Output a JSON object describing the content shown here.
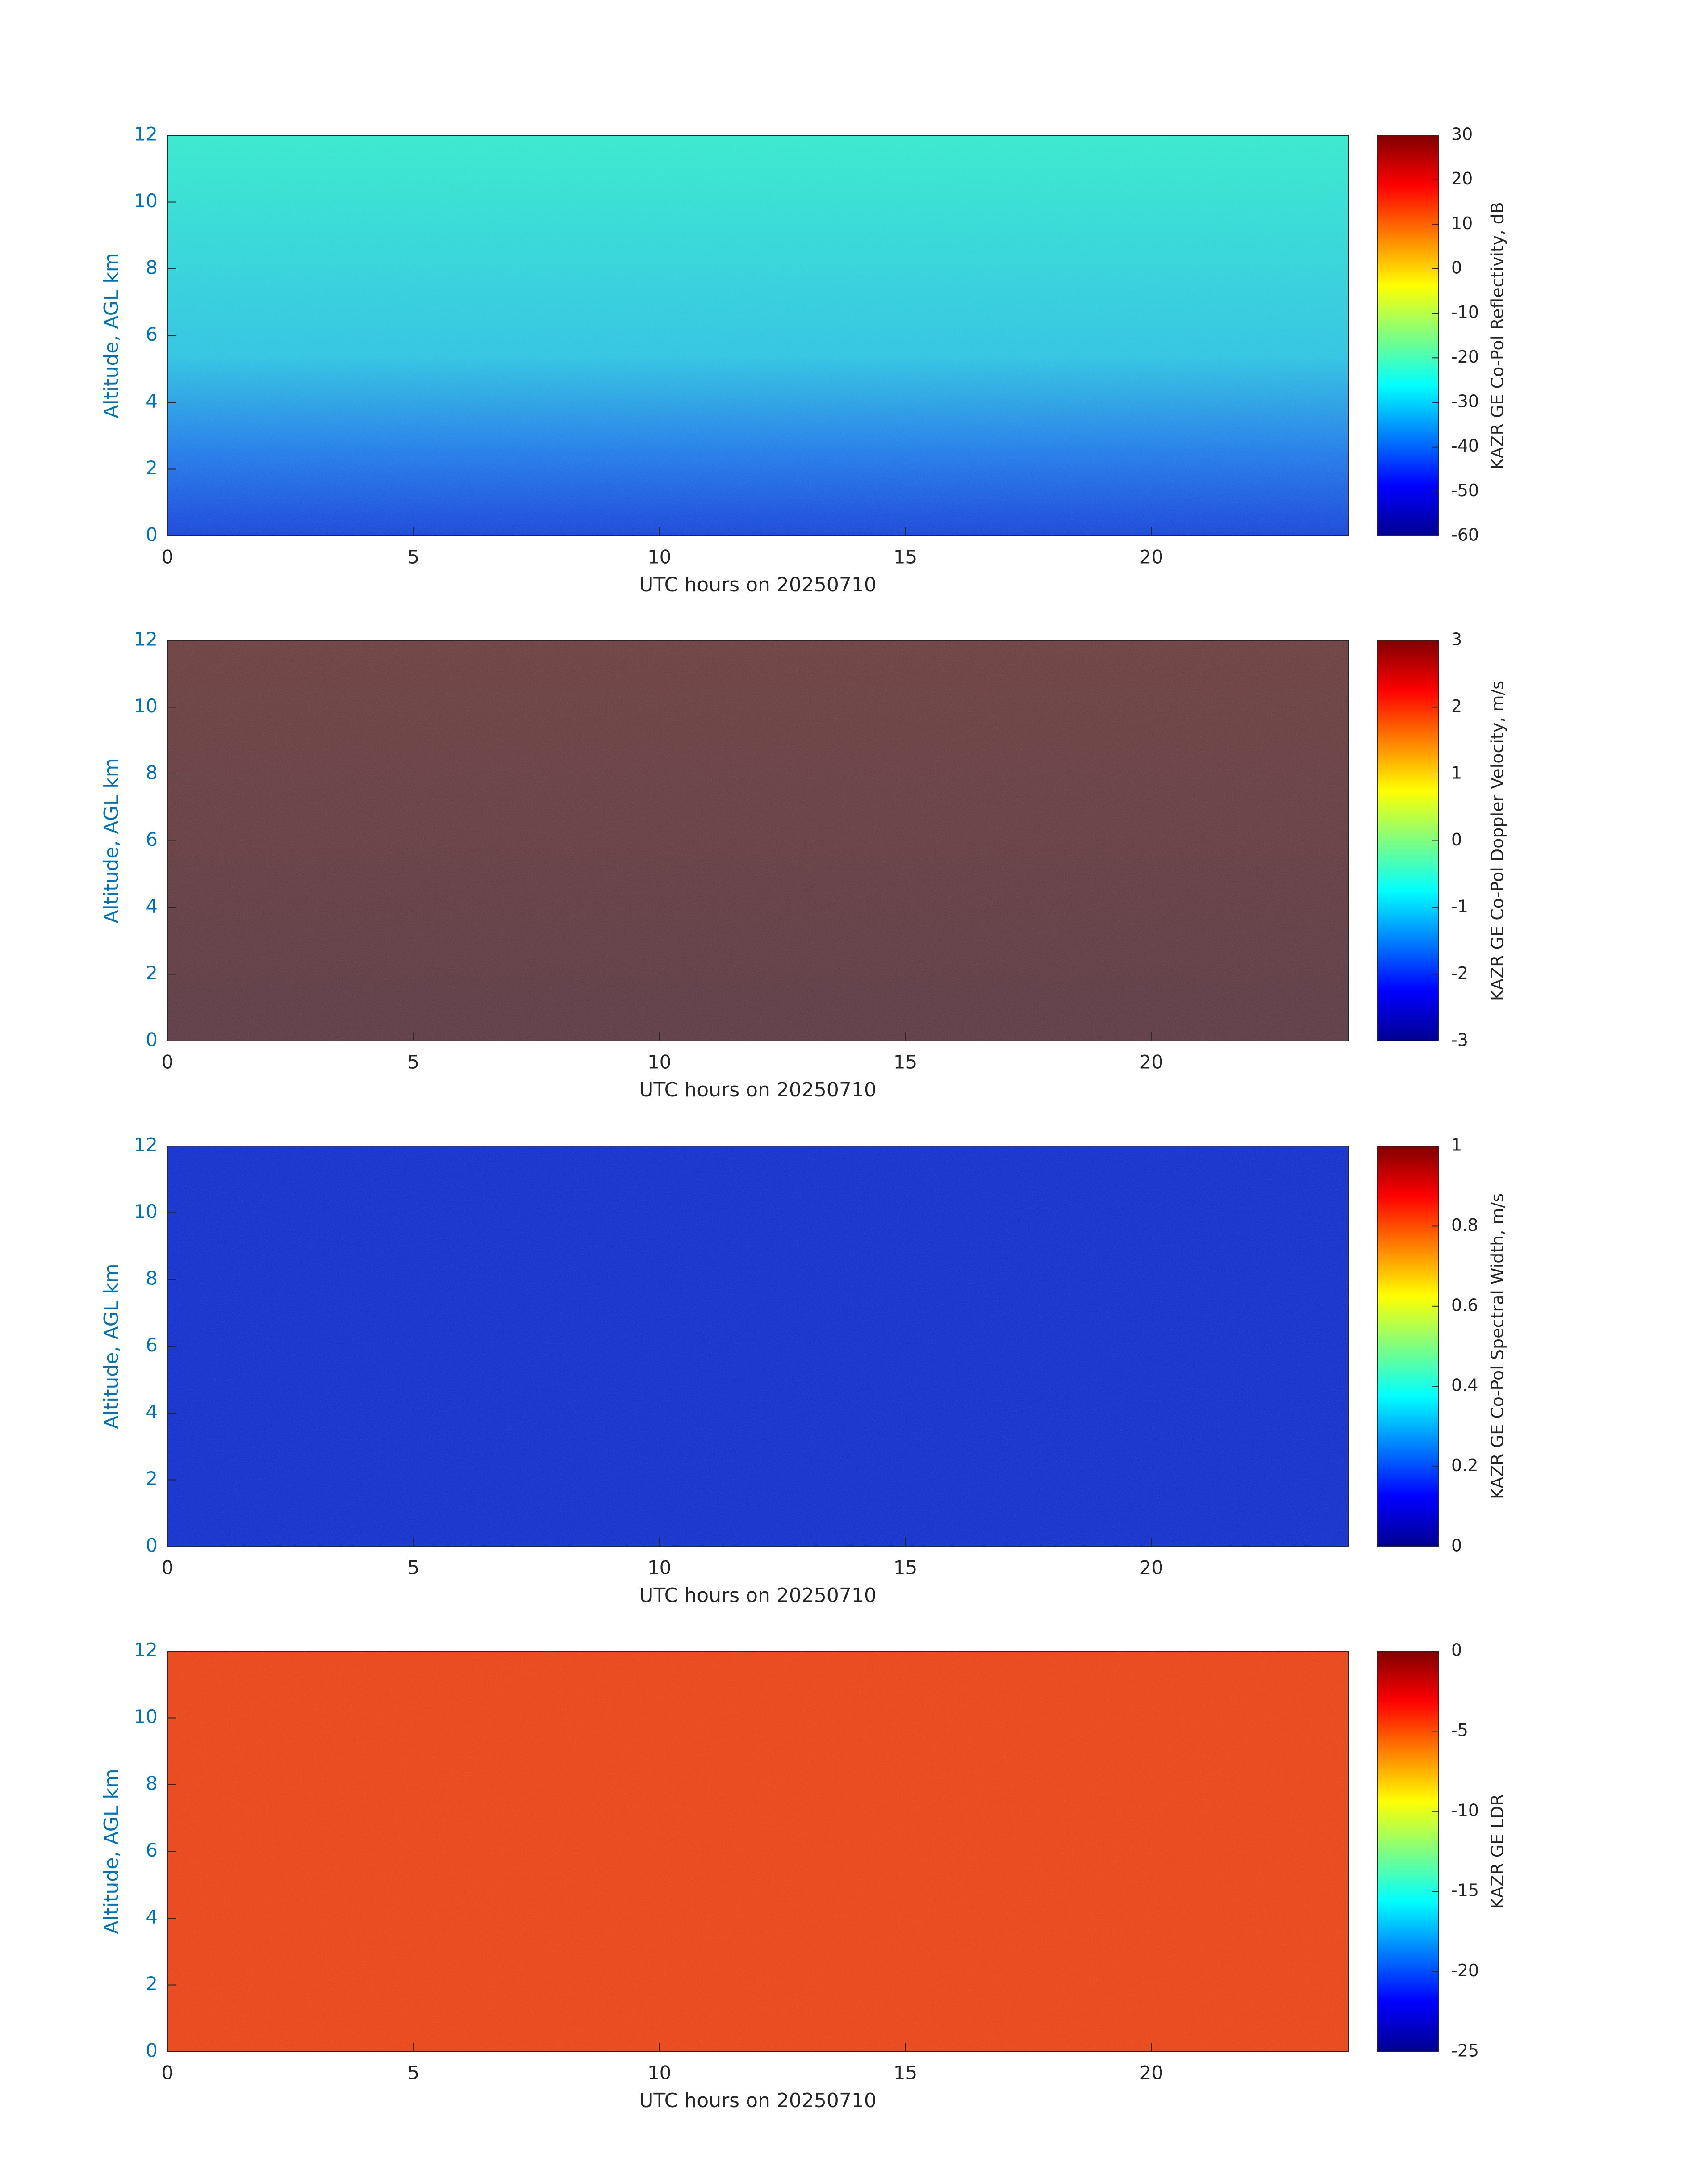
{
  "chart_data": [
    {
      "type": "heatmap",
      "xlabel": "UTC hours on 20250710",
      "ylabel": "Altitude, AGL km",
      "xlim": [
        0,
        24
      ],
      "xticks": [
        0,
        5,
        10,
        15,
        20
      ],
      "ylim": [
        0,
        12
      ],
      "yticks": [
        0,
        2,
        4,
        6,
        8,
        10,
        12
      ],
      "colormap": "jet",
      "colorbar": {
        "label": "KAZR GE Co-Pol Reflectivity, dB",
        "lim": [
          -60,
          30
        ],
        "ticks": [
          -60,
          -50,
          -40,
          -30,
          -20,
          -10,
          0,
          10,
          20,
          30
        ]
      }
    },
    {
      "type": "heatmap",
      "xlabel": "UTC hours on 20250710",
      "ylabel": "Altitude, AGL km",
      "xlim": [
        0,
        24
      ],
      "xticks": [
        0,
        5,
        10,
        15,
        20
      ],
      "ylim": [
        0,
        12
      ],
      "yticks": [
        0,
        2,
        4,
        6,
        8,
        10,
        12
      ],
      "colormap": "jet",
      "colorbar": {
        "label": "KAZR GE Co-Pol Doppler Velocity, m/s",
        "lim": [
          -3,
          3
        ],
        "ticks": [
          -3,
          -2,
          -1,
          0,
          1,
          2,
          3
        ]
      }
    },
    {
      "type": "heatmap",
      "xlabel": "UTC hours on 20250710",
      "ylabel": "Altitude, AGL km",
      "xlim": [
        0,
        24
      ],
      "xticks": [
        0,
        5,
        10,
        15,
        20
      ],
      "ylim": [
        0,
        12
      ],
      "yticks": [
        0,
        2,
        4,
        6,
        8,
        10,
        12
      ],
      "colormap": "jet",
      "colorbar": {
        "label": "KAZR GE Co-Pol Spectral Width, m/s",
        "lim": [
          0,
          1
        ],
        "ticks": [
          0,
          0.2,
          0.4,
          0.6,
          0.8,
          1
        ]
      }
    },
    {
      "type": "heatmap",
      "xlabel": "UTC hours on 20250710",
      "ylabel": "Altitude, AGL km",
      "xlim": [
        0,
        24
      ],
      "xticks": [
        0,
        5,
        10,
        15,
        20
      ],
      "ylim": [
        0,
        12
      ],
      "yticks": [
        0,
        2,
        4,
        6,
        8,
        10,
        12
      ],
      "colormap": "jet",
      "colorbar": {
        "label": "KAZR GE LDR",
        "lim": [
          -25,
          0
        ],
        "ticks": [
          -25,
          -20,
          -15,
          -10,
          -5,
          0
        ]
      }
    }
  ]
}
